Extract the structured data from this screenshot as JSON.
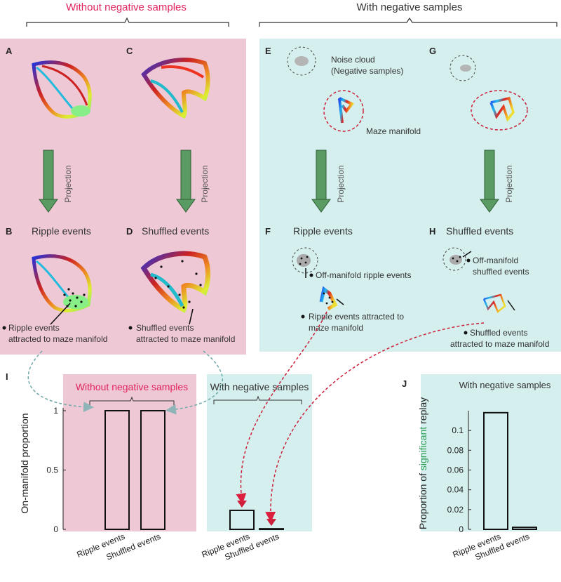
{
  "colors": {
    "pink_panel": "#efc8d5",
    "cyan_panel": "#d5efee",
    "magenta_text": "#e0245e",
    "green_arrow": "#5a9b63",
    "teal_dash": "#6fa8a7",
    "red_dash": "#cc1f3a",
    "significant_green": "#2f9e57"
  },
  "headers": {
    "without": "Without negative samples",
    "with": "With negative samples"
  },
  "panels": {
    "A": "A",
    "B": "B",
    "C": "C",
    "D": "D",
    "E": "E",
    "F": "F",
    "G": "G",
    "H": "H",
    "I": "I",
    "J": "J"
  },
  "titles": {
    "ripple": "Ripple events",
    "shuffled": "Shuffled events"
  },
  "projection_label": "Projection",
  "annotations": {
    "noise_cloud_1": "Noise cloud",
    "noise_cloud_2": "(Negative samples)",
    "maze_manifold": "Maze manifold",
    "b_ann_1": "Ripple events",
    "b_ann_2": "attracted to maze manifold",
    "d_ann_1": "Shuffled events",
    "d_ann_2": "attracted to maze manifold",
    "f_off": "Off-manifold ripple events",
    "f_att_1": "Ripple events attracted to",
    "f_att_2": "maze manifold",
    "h_off_1": "Off-manifold",
    "h_off_2": "shuffled events",
    "h_att_1": "Shuffled events",
    "h_att_2": "attracted to maze manifold"
  },
  "chart_data": [
    {
      "type": "bar",
      "panel": "I",
      "ylabel": "On-manifold proportion",
      "ylim": [
        0,
        1
      ],
      "yticks": [
        "0",
        "0.5",
        "1"
      ],
      "groups": [
        {
          "label": "Without negative samples",
          "categories": [
            "Ripple events",
            "Shuffled events"
          ],
          "values": [
            1.0,
            1.0
          ]
        },
        {
          "label": "With negative samples",
          "categories": [
            "Ripple events",
            "Shuffled events"
          ],
          "values": [
            0.16,
            0.005
          ]
        }
      ]
    },
    {
      "type": "bar",
      "panel": "J",
      "title": "With negative samples",
      "ylabel_parts": [
        "Proportion of ",
        "significant",
        " replay"
      ],
      "ylim": [
        0,
        0.12
      ],
      "yticks": [
        "0",
        "0.02",
        "0.04",
        "0.06",
        "0.08",
        "0.1"
      ],
      "categories": [
        "Ripple events",
        "Shuffled events"
      ],
      "values": [
        0.118,
        0.002
      ]
    }
  ]
}
